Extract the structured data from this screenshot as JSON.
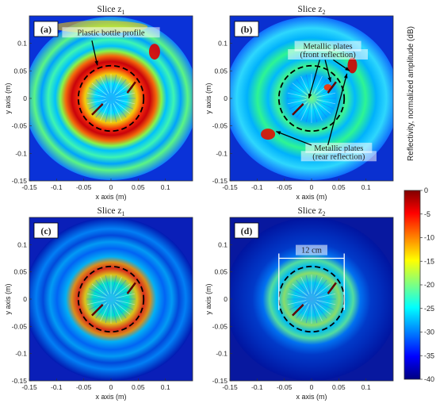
{
  "chart_data": [
    {
      "type": "heatmap",
      "panel_letter": "(a)",
      "title": "Slice z",
      "title_sub": "1",
      "xlabel": "x axis (m)",
      "ylabel": "y axis (m)",
      "xlim": [
        -0.15,
        0.15
      ],
      "ylim": [
        -0.15,
        0.15
      ],
      "xticks": [
        "-0.15",
        "-0.1",
        "-0.05",
        "0",
        "0.05",
        "0.1"
      ],
      "yticks": [
        "0.1",
        "0.05",
        "0",
        "-0.05",
        "-0.1",
        "-0.15"
      ],
      "annotations": [
        {
          "text": "Plastic bottle profile",
          "x": 0.0,
          "y": 0.115
        }
      ],
      "dashed_circle": {
        "center": [
          0.0,
          0.0
        ],
        "radius": 0.06
      }
    },
    {
      "type": "heatmap",
      "panel_letter": "(b)",
      "title": "Slice z",
      "title_sub": "2",
      "xlabel": "x axis (m)",
      "ylabel": "y axis (m)",
      "xlim": [
        -0.15,
        0.15
      ],
      "ylim": [
        -0.15,
        0.15
      ],
      "xticks": [
        "-0.15",
        "-0.1",
        "-0.05",
        "0",
        "0.05",
        "0.1"
      ],
      "yticks": [
        "0.1",
        "0.05",
        "0",
        "-0.05",
        "-0.1",
        "-0.15"
      ],
      "annotations": [
        {
          "text": "Metallic plates",
          "x": 0.03,
          "y": 0.09
        },
        {
          "text": "(front reflection)",
          "x": 0.03,
          "y": 0.075
        },
        {
          "text": "Metallic plates",
          "x": 0.05,
          "y": -0.095
        },
        {
          "text": "(rear reflection)",
          "x": 0.05,
          "y": -0.11
        }
      ],
      "dashed_circle": {
        "center": [
          0.0,
          0.0
        ],
        "radius": 0.06
      }
    },
    {
      "type": "heatmap",
      "panel_letter": "(c)",
      "title": "Slice z",
      "title_sub": "1",
      "xlabel": "x axis (m)",
      "ylabel": "y axis (m)",
      "xlim": [
        -0.15,
        0.15
      ],
      "ylim": [
        -0.15,
        0.15
      ],
      "xticks": [
        "-0.15",
        "-0.1",
        "-0.05",
        "0",
        "0.05",
        "0.1"
      ],
      "yticks": [
        "0.1",
        "0.05",
        "0",
        "-0.05",
        "-0.1",
        "-0.15"
      ],
      "dashed_circle": {
        "center": [
          0.0,
          0.0
        ],
        "radius": 0.06
      }
    },
    {
      "type": "heatmap",
      "panel_letter": "(d)",
      "title": "Slice z",
      "title_sub": "2",
      "xlabel": "x axis (m)",
      "ylabel": "y axis (m)",
      "xlim": [
        -0.15,
        0.15
      ],
      "ylim": [
        -0.15,
        0.15
      ],
      "xticks": [
        "-0.15",
        "-0.1",
        "-0.05",
        "0",
        "0.05",
        "0.1"
      ],
      "yticks": [
        "0.1",
        "0.05",
        "0",
        "-0.05",
        "-0.1",
        "-0.15"
      ],
      "annotations": [
        {
          "text": "12 cm",
          "x": 0.0,
          "y": 0.085
        }
      ],
      "dimension_line": {
        "from": -0.06,
        "to": 0.06,
        "y": 0.075
      },
      "dashed_circle": {
        "center": [
          0.0,
          0.0
        ],
        "radius": 0.06
      }
    }
  ],
  "colorbar": {
    "label": "Reflectivity, normalized amplitude (dB)",
    "range": [
      -40,
      0
    ],
    "ticks": [
      "0",
      "-5",
      "-10",
      "-15",
      "-20",
      "-25",
      "-30",
      "-35",
      "-40"
    ]
  }
}
